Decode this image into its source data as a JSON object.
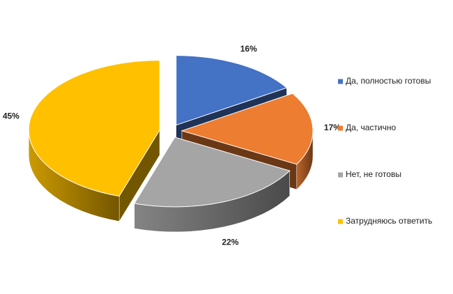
{
  "chart_data": {
    "type": "pie",
    "categories": [
      "Да, полностью готовы",
      "Да, частично",
      "Нет, не готовы",
      "Затрудняюсь ответить"
    ],
    "values": [
      16,
      17,
      22,
      45
    ],
    "value_labels": [
      "16%",
      "17%",
      "22%",
      "45%"
    ],
    "colors": [
      "#4472c4",
      "#ed7d31",
      "#a5a5a5",
      "#ffc000"
    ],
    "legend": "right"
  }
}
